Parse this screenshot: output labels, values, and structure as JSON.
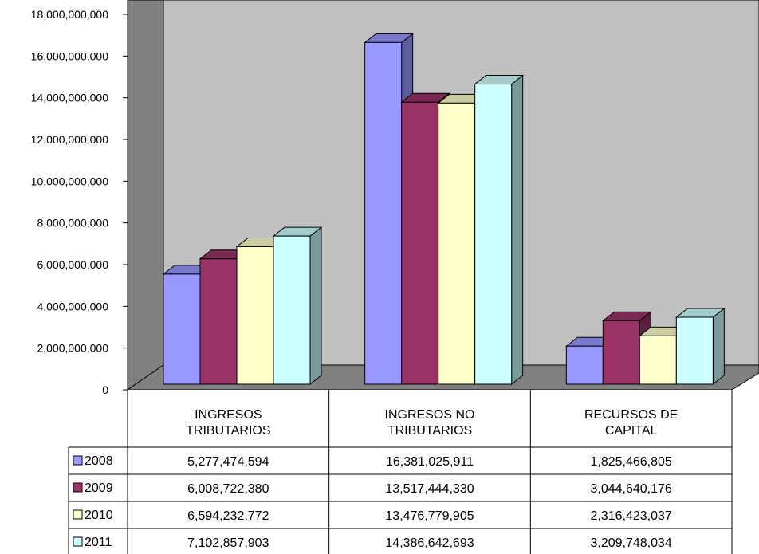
{
  "chart_data": {
    "type": "bar",
    "categories": [
      [
        "INGRESOS",
        "TRIBUTARIOS"
      ],
      [
        "INGRESOS NO",
        "TRIBUTARIOS"
      ],
      [
        "RECURSOS DE",
        "CAPITAL"
      ]
    ],
    "series": [
      {
        "name": "2008",
        "values": [
          5277474594,
          16381025911,
          1825466805
        ],
        "labels": [
          "5,277,474,594",
          "16,381,025,911",
          "1,825,466,805"
        ],
        "color": "#9999ff"
      },
      {
        "name": "2009",
        "values": [
          6008722380,
          13517444330,
          3044640176
        ],
        "labels": [
          "6,008,722,380",
          "13,517,444,330",
          "3,044,640,176"
        ],
        "color": "#993366"
      },
      {
        "name": "2010",
        "values": [
          6594232772,
          13476779905,
          2316423037
        ],
        "labels": [
          "6,594,232,772",
          "13,476,779,905",
          "2,316,423,037"
        ],
        "color": "#ffffcc"
      },
      {
        "name": "2011",
        "values": [
          7102857903,
          14386642693,
          3209748034
        ],
        "labels": [
          "7,102,857,903",
          "14,386,642,693",
          "3,209,748,034"
        ],
        "color": "#ccffff"
      }
    ],
    "yticks": [
      "0",
      "2,000,000,000",
      "4,000,000,000",
      "6,000,000,000",
      "8,000,000,000",
      "10,000,000,000",
      "12,000,000,000",
      "14,000,000,000",
      "16,000,000,000",
      "18,000,000,000"
    ],
    "ylim": [
      0,
      18000000000
    ],
    "grid": false,
    "legend": "data-table-left",
    "wall_color": "#c0c0c0",
    "side_wall_color": "#808080"
  }
}
